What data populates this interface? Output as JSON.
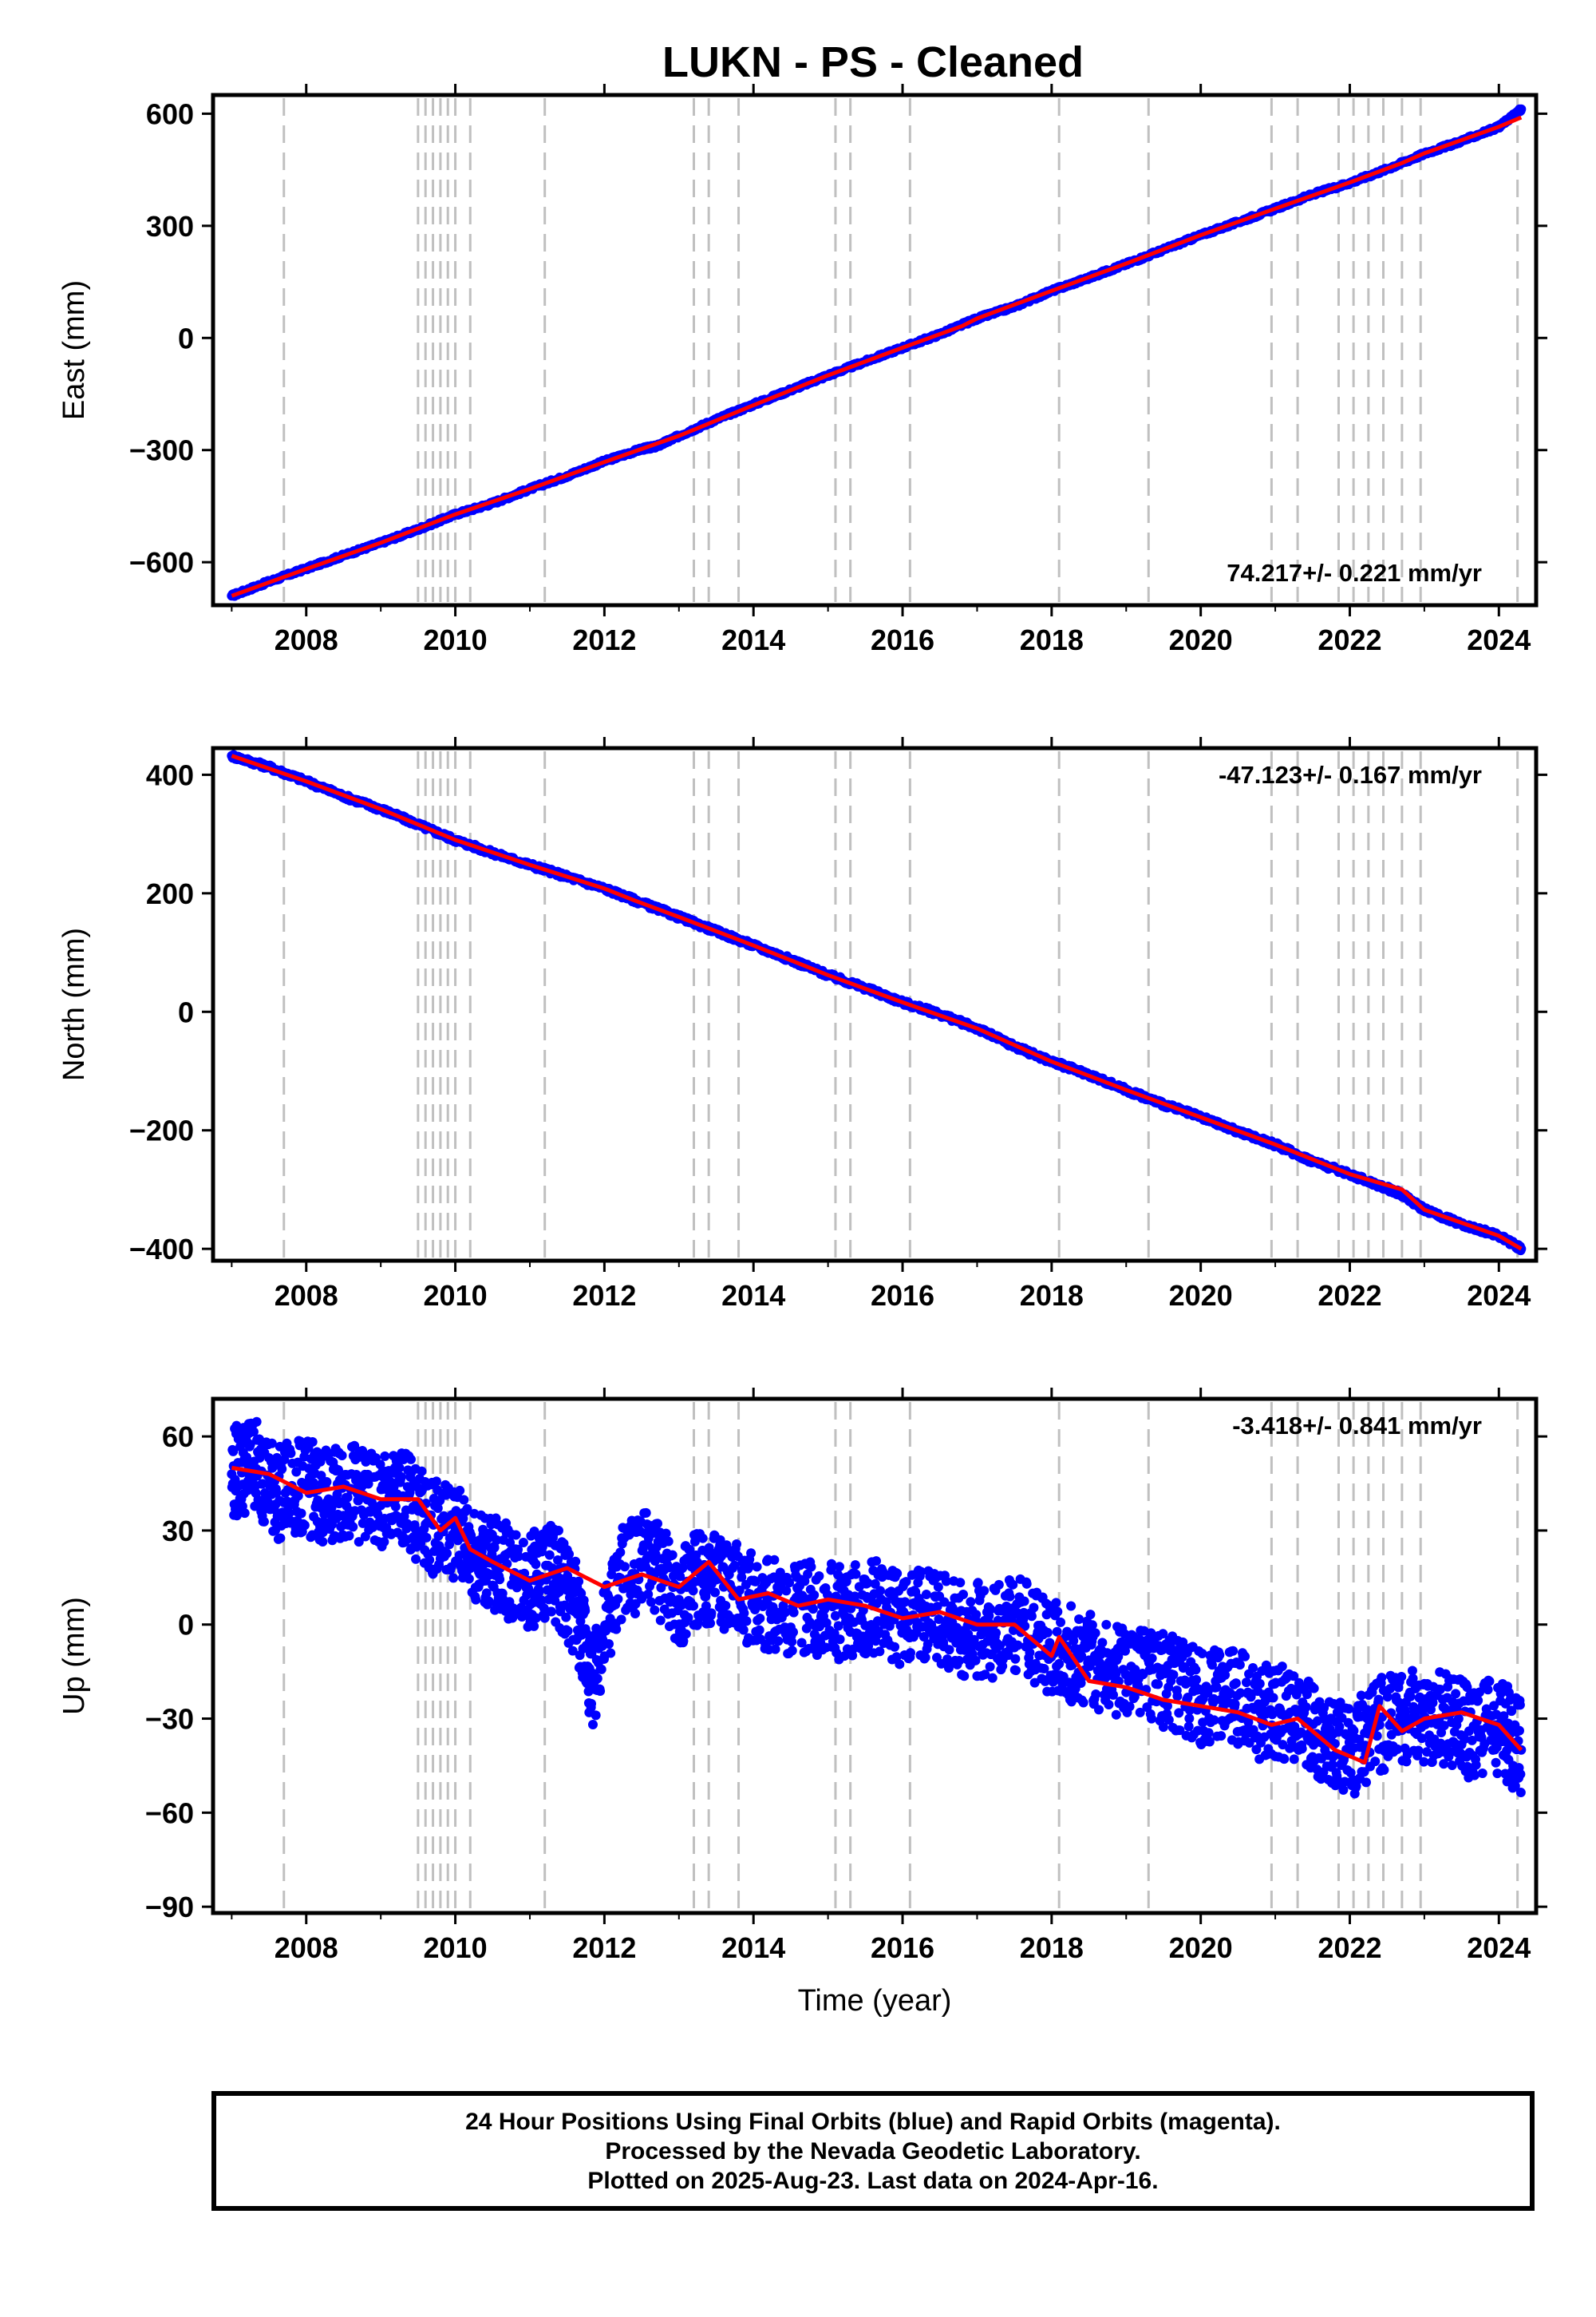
{
  "footer": {
    "lines": [
      "24 Hour Positions Using Final Orbits (blue) and Rapid Orbits (magenta).",
      "Processed by the Nevada Geodetic Laboratory.",
      "Plotted on 2025-Aug-23. Last data on 2024-Apr-16."
    ]
  },
  "colors": {
    "data_points": "#0000ff",
    "model_fit": "#ff0000",
    "event_lines": "#c0c0c0",
    "axes": "#000000"
  },
  "chart_data": [
    {
      "type": "scatter",
      "title": "LUKN  - PS - Cleaned",
      "xlabel": "",
      "ylabel": "East (mm)",
      "xlim": [
        2006.75,
        2024.5
      ],
      "ylim": [
        -715,
        650
      ],
      "xticks": [
        "2008",
        "2010",
        "2012",
        "2014",
        "2016",
        "2018",
        "2020",
        "2022",
        "2024"
      ],
      "yticks": [
        "600",
        "300",
        "0",
        "−300",
        "−600"
      ],
      "rate_annotation": "74.217+/- 0.221 mm/yr",
      "rate_position": "bottom-right",
      "event_lines": [
        2007.7,
        2009.5,
        2009.6,
        2009.7,
        2009.8,
        2009.9,
        2010.0,
        2010.2,
        2011.2,
        2013.2,
        2013.4,
        2013.8,
        2015.1,
        2015.3,
        2016.1,
        2018.1,
        2019.3,
        2020.95,
        2021.3,
        2021.85,
        2022.05,
        2022.25,
        2022.45,
        2022.7,
        2022.95,
        2024.25
      ],
      "series": [
        {
          "name": "",
          "role": "daily positions",
          "x": [
            2007.0,
            2007.5,
            2008.0,
            2008.5,
            2009.0,
            2009.5,
            2010.0,
            2010.5,
            2011.0,
            2011.5,
            2012.0,
            2012.5,
            2012.7,
            2013.0,
            2013.5,
            2014.0,
            2014.5,
            2015.0,
            2015.5,
            2016.0,
            2016.5,
            2017.0,
            2017.5,
            2018.0,
            2018.5,
            2019.0,
            2019.5,
            2020.0,
            2020.5,
            2021.0,
            2021.5,
            2022.0,
            2022.5,
            2023.0,
            2023.5,
            2024.0,
            2024.3
          ],
          "y": [
            -690,
            -652,
            -617,
            -582,
            -548,
            -512,
            -472,
            -442,
            -404,
            -369,
            -330,
            -297,
            -290,
            -262,
            -218,
            -178,
            -139,
            -100,
            -63,
            -26,
            10,
            52,
            84,
            126,
            161,
            198,
            236,
            275,
            310,
            346,
            384,
            415,
            452,
            493,
            527,
            565,
            612
          ]
        },
        {
          "name": "",
          "role": "model fit",
          "x": [
            2007.0,
            2008.0,
            2009.0,
            2010.0,
            2011.0,
            2012.0,
            2013.0,
            2014.0,
            2015.0,
            2016.0,
            2016.8,
            2017.0,
            2018.0,
            2019.0,
            2020.0,
            2021.0,
            2022.0,
            2022.7,
            2023.0,
            2024.0,
            2024.3
          ],
          "y": [
            -690,
            -618,
            -548,
            -472,
            -404,
            -332,
            -262,
            -180,
            -100,
            -26,
            32,
            52,
            126,
            199,
            275,
            346,
            416,
            468,
            494,
            565,
            590
          ]
        }
      ]
    },
    {
      "type": "scatter",
      "title": "",
      "xlabel": "",
      "ylabel": "North (mm)",
      "xlim": [
        2006.75,
        2024.5
      ],
      "ylim": [
        -420,
        445
      ],
      "xticks": [
        "2008",
        "2010",
        "2012",
        "2014",
        "2016",
        "2018",
        "2020",
        "2022",
        "2024"
      ],
      "yticks": [
        "400",
        "200",
        "0",
        "−200",
        "−400"
      ],
      "rate_annotation": "-47.123+/- 0.167 mm/yr",
      "rate_position": "top-right",
      "event_lines": [
        2007.7,
        2009.5,
        2009.6,
        2009.7,
        2009.8,
        2009.9,
        2010.0,
        2010.2,
        2011.2,
        2013.2,
        2013.4,
        2013.8,
        2015.1,
        2015.3,
        2016.1,
        2018.1,
        2019.3,
        2020.95,
        2021.3,
        2021.85,
        2022.05,
        2022.25,
        2022.45,
        2022.7,
        2022.95,
        2024.25
      ],
      "series": [
        {
          "name": "",
          "role": "daily positions",
          "x": [
            2007.0,
            2007.5,
            2008.0,
            2008.5,
            2009.0,
            2009.5,
            2010.0,
            2010.5,
            2011.0,
            2011.5,
            2012.0,
            2012.5,
            2013.0,
            2013.5,
            2014.0,
            2014.5,
            2015.0,
            2015.5,
            2016.0,
            2016.5,
            2017.0,
            2017.5,
            2018.0,
            2018.5,
            2019.0,
            2019.5,
            2020.0,
            2020.5,
            2021.0,
            2021.5,
            2022.0,
            2022.5,
            2022.7,
            2023.0,
            2023.5,
            2024.0,
            2024.3
          ],
          "y": [
            432,
            413,
            389,
            364,
            342,
            316,
            290,
            268,
            248,
            228,
            208,
            184,
            160,
            136,
            112,
            88,
            62,
            40,
            16,
            -4,
            -28,
            -58,
            -84,
            -106,
            -132,
            -156,
            -178,
            -202,
            -224,
            -252,
            -274,
            -298,
            -308,
            -334,
            -358,
            -378,
            -400
          ]
        },
        {
          "name": "",
          "role": "model fit",
          "x": [
            2007.0,
            2008.0,
            2009.0,
            2010.0,
            2011.0,
            2012.0,
            2012.4,
            2013.0,
            2014.0,
            2015.0,
            2016.0,
            2017.0,
            2018.0,
            2019.0,
            2020.0,
            2021.0,
            2022.0,
            2022.7,
            2023.0,
            2024.0,
            2024.3
          ],
          "y": [
            432,
            389,
            342,
            290,
            248,
            208,
            188,
            160,
            112,
            62,
            16,
            -28,
            -84,
            -132,
            -178,
            -224,
            -274,
            -300,
            -334,
            -378,
            -400
          ]
        }
      ]
    },
    {
      "type": "scatter",
      "title": "",
      "xlabel": "Time (year)",
      "ylabel": "Up (mm)",
      "xlim": [
        2006.75,
        2024.5
      ],
      "ylim": [
        -92,
        72
      ],
      "xticks": [
        "2008",
        "2010",
        "2012",
        "2014",
        "2016",
        "2018",
        "2020",
        "2022",
        "2024"
      ],
      "yticks": [
        "60",
        "30",
        "0",
        "−30",
        "−60",
        "−90"
      ],
      "rate_annotation": "-3.418+/- 0.841 mm/yr",
      "rate_position": "top-right",
      "event_lines": [
        2007.7,
        2009.5,
        2009.6,
        2009.7,
        2009.8,
        2009.9,
        2010.0,
        2010.2,
        2011.2,
        2013.2,
        2013.4,
        2013.8,
        2015.1,
        2015.3,
        2016.1,
        2018.1,
        2019.3,
        2020.95,
        2021.3,
        2021.85,
        2022.05,
        2022.25,
        2022.45,
        2022.7,
        2022.95,
        2024.25
      ],
      "series": [
        {
          "name": "",
          "role": "daily positions",
          "x": [
            2007.0,
            2007.3,
            2007.6,
            2008.0,
            2008.3,
            2008.6,
            2009.0,
            2009.3,
            2009.6,
            2010.0,
            2010.3,
            2010.6,
            2011.0,
            2011.3,
            2011.6,
            2011.85,
            2012.2,
            2012.6,
            2013.0,
            2013.3,
            2013.6,
            2014.0,
            2014.4,
            2014.8,
            2015.2,
            2015.6,
            2016.0,
            2016.4,
            2016.8,
            2017.2,
            2017.6,
            2018.0,
            2018.4,
            2018.8,
            2019.2,
            2019.6,
            2020.0,
            2020.4,
            2020.8,
            2021.2,
            2021.6,
            2022.0,
            2022.4,
            2022.8,
            2023.2,
            2023.6,
            2024.0,
            2024.3
          ],
          "y": [
            48,
            52,
            42,
            44,
            40,
            43,
            38,
            41,
            32,
            30,
            22,
            18,
            14,
            18,
            6,
            -18,
            15,
            22,
            8,
            16,
            12,
            8,
            6,
            5,
            4,
            6,
            0,
            4,
            -2,
            -2,
            0,
            -8,
            -10,
            -14,
            -16,
            -18,
            -24,
            -22,
            -28,
            -28,
            -36,
            -40,
            -32,
            -30,
            -30,
            -34,
            -32,
            -40
          ]
        },
        {
          "name": "",
          "role": "model fit",
          "x": [
            2007.0,
            2007.5,
            2008.0,
            2008.5,
            2009.0,
            2009.5,
            2009.8,
            2010.0,
            2010.2,
            2010.5,
            2011.0,
            2011.5,
            2012.0,
            2012.5,
            2013.0,
            2013.4,
            2013.8,
            2014.2,
            2014.6,
            2015.0,
            2015.5,
            2016.0,
            2016.5,
            2017.0,
            2017.5,
            2018.0,
            2018.1,
            2018.5,
            2019.0,
            2019.5,
            2020.0,
            2020.5,
            2020.95,
            2021.3,
            2021.8,
            2022.2,
            2022.4,
            2022.7,
            2023.0,
            2023.5,
            2024.0,
            2024.3
          ],
          "y": [
            50,
            48,
            42,
            44,
            40,
            40,
            30,
            34,
            24,
            20,
            14,
            18,
            12,
            16,
            12,
            20,
            8,
            10,
            6,
            8,
            6,
            2,
            4,
            0,
            0,
            -10,
            -4,
            -18,
            -20,
            -24,
            -26,
            -28,
            -32,
            -30,
            -40,
            -44,
            -26,
            -34,
            -30,
            -28,
            -32,
            -40
          ]
        }
      ]
    }
  ]
}
